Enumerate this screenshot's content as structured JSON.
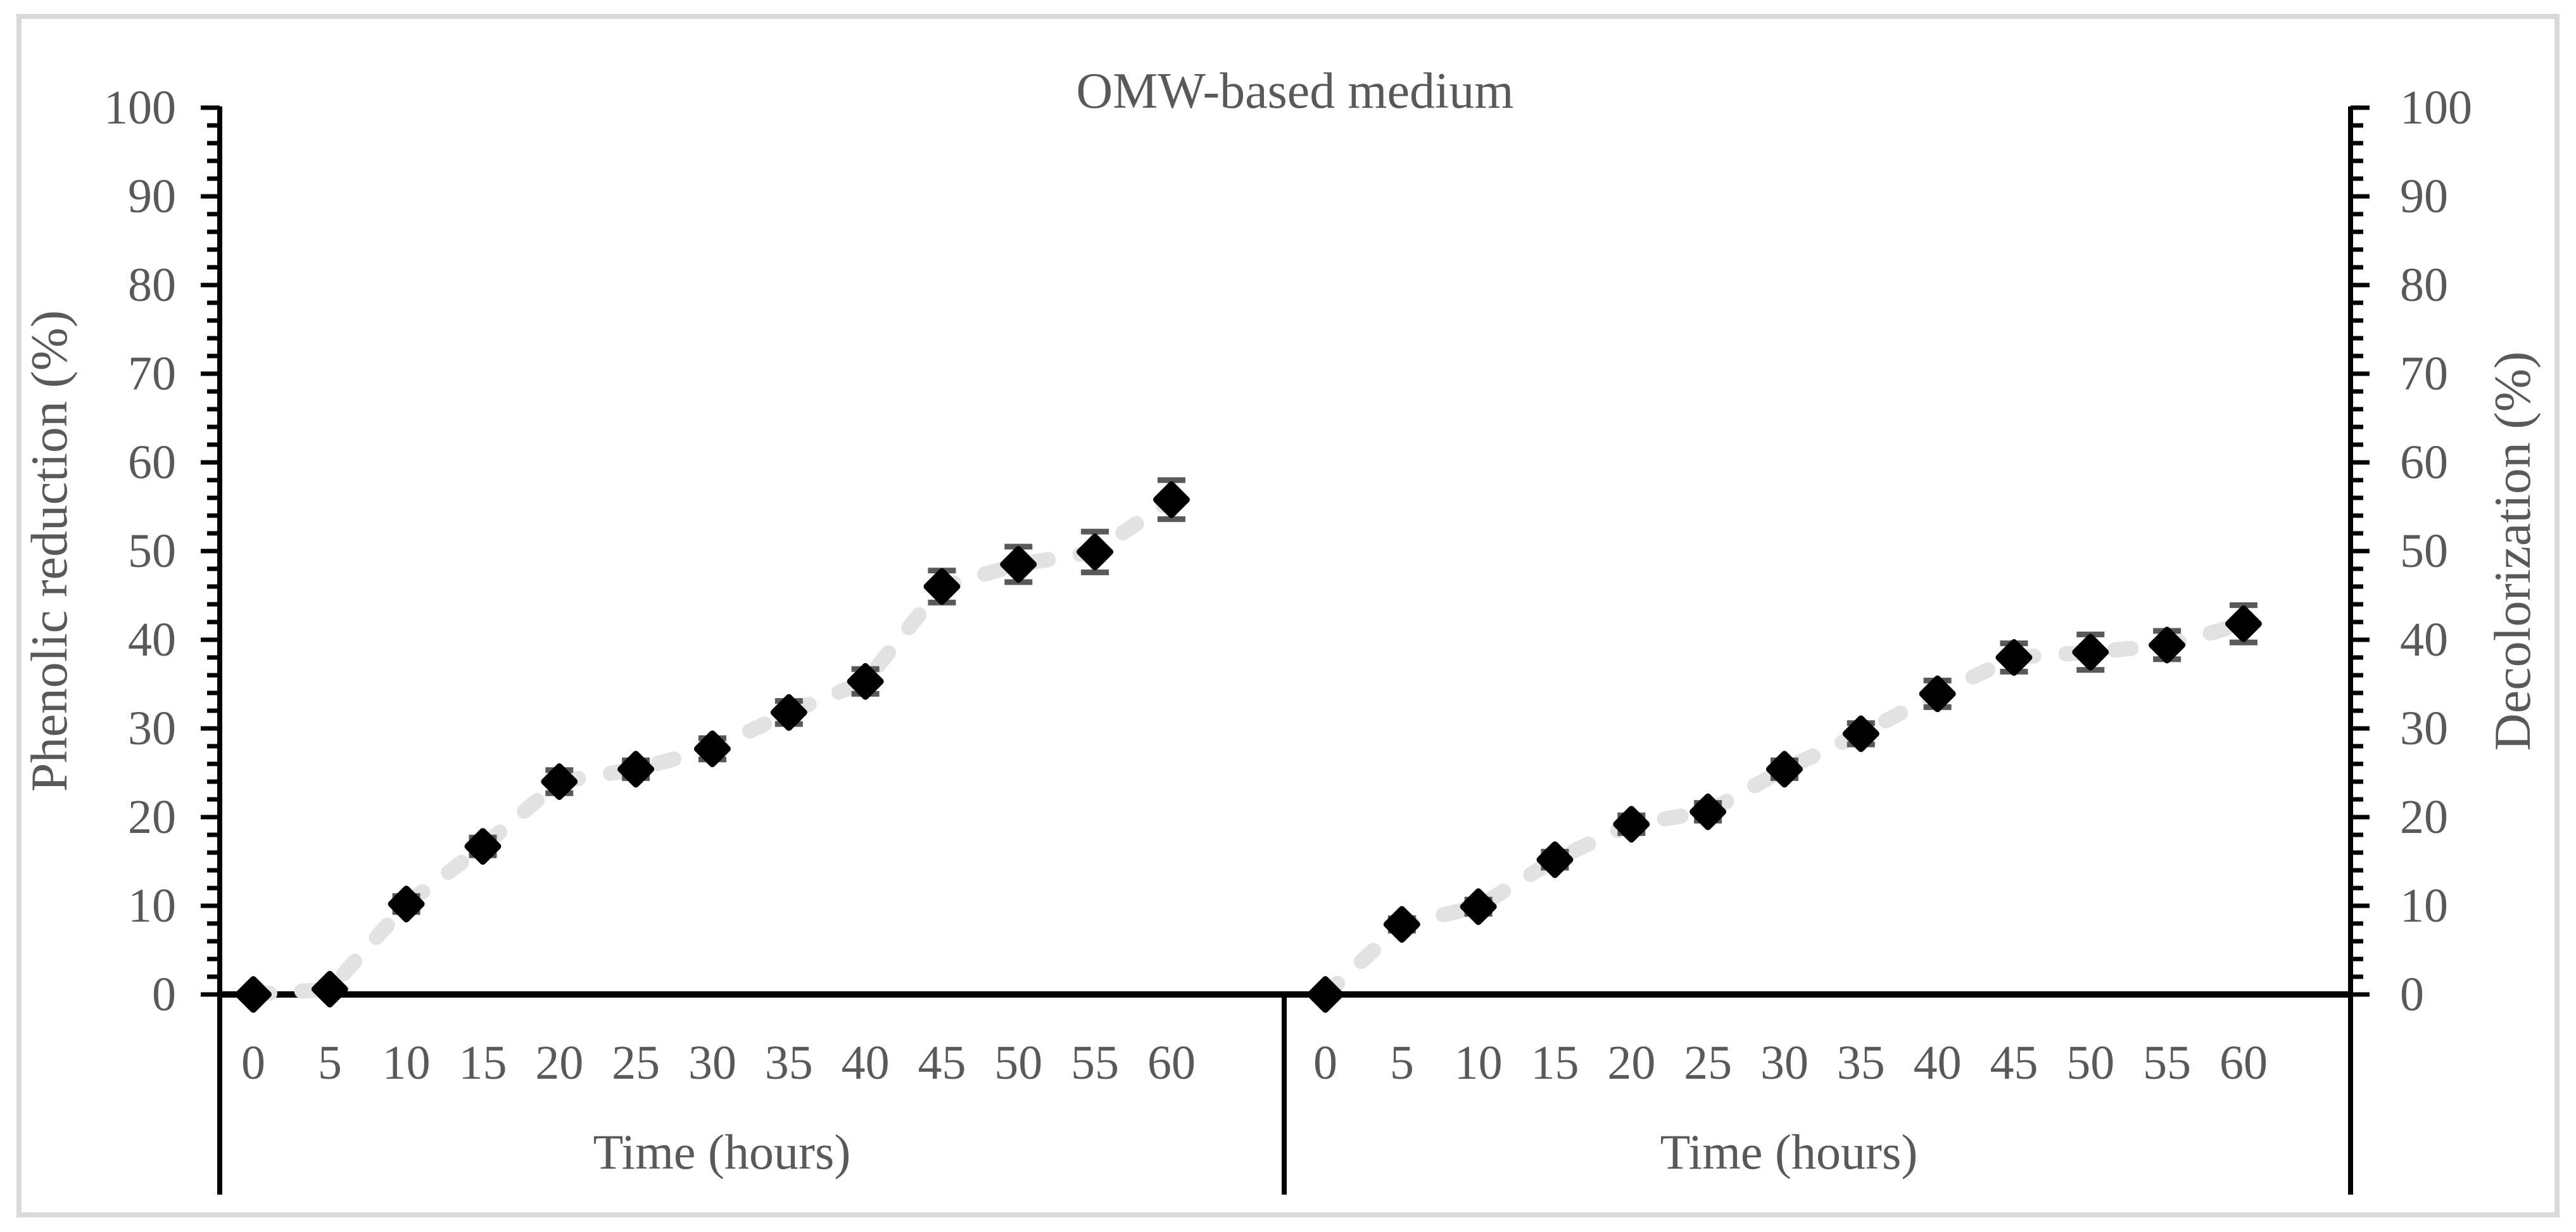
{
  "figure": {
    "title": "OMW-based medium",
    "background": "#ffffff",
    "border_color": "#d9d9d9"
  },
  "style": {
    "axis_color": "#000000",
    "text_color": "#595959",
    "marker_color": "#000000",
    "dash_line_color": "#e2e2e2",
    "error_bar_color": "#595959"
  },
  "chart_data": [
    {
      "type": "scatter",
      "panel": "left",
      "title": "OMW-based medium",
      "xlabel": "Time (hours)",
      "ylabel": "Phenolic reduction (%)",
      "ylabel_side": "left",
      "marker": "diamond",
      "line_style": "dashed",
      "grid": false,
      "legend": false,
      "xlim": [
        0,
        60
      ],
      "ylim": [
        0,
        100
      ],
      "x_tick_step": 5,
      "y_tick_step": 10,
      "y_minor_tick_step": 2,
      "x_tick_labels": [
        "0",
        "5",
        "10",
        "15",
        "20",
        "25",
        "30",
        "35",
        "40",
        "45",
        "50",
        "55",
        "60"
      ],
      "y_tick_labels": [
        "0",
        "10",
        "20",
        "30",
        "40",
        "50",
        "60",
        "70",
        "80",
        "90",
        "100"
      ],
      "x": [
        0,
        5,
        10,
        15,
        20,
        25,
        30,
        35,
        40,
        45,
        50,
        55,
        60
      ],
      "y": [
        0,
        0.6,
        10.2,
        16.7,
        24.0,
        25.4,
        27.7,
        31.8,
        35.3,
        46.0,
        48.5,
        49.9,
        55.8
      ],
      "yerr": [
        0,
        0,
        0.9,
        1.0,
        1.3,
        1.0,
        1.2,
        1.3,
        1.4,
        1.8,
        2.0,
        2.3,
        2.2
      ]
    },
    {
      "type": "scatter",
      "panel": "right",
      "title": "OMW-based medium",
      "xlabel": "Time (hours)",
      "ylabel": "Decolorization (%)",
      "ylabel_side": "right",
      "marker": "diamond",
      "line_style": "dashed",
      "grid": false,
      "legend": false,
      "xlim": [
        0,
        60
      ],
      "ylim": [
        0,
        100
      ],
      "x_tick_step": 5,
      "y_tick_step": 10,
      "y_minor_tick_step": 2,
      "x_tick_labels": [
        "0",
        "5",
        "10",
        "15",
        "20",
        "25",
        "30",
        "35",
        "40",
        "45",
        "50",
        "55",
        "60"
      ],
      "y_tick_labels": [
        "0",
        "10",
        "20",
        "30",
        "40",
        "50",
        "60",
        "70",
        "80",
        "90",
        "100"
      ],
      "x": [
        0,
        5,
        10,
        15,
        20,
        25,
        30,
        35,
        40,
        45,
        50,
        55,
        60
      ],
      "y": [
        0,
        7.9,
        9.9,
        15.2,
        19.2,
        20.6,
        25.4,
        29.4,
        33.9,
        38.0,
        38.6,
        39.4,
        41.8
      ],
      "yerr": [
        0,
        0.7,
        0.8,
        0.9,
        1.0,
        1.0,
        1.0,
        1.2,
        1.5,
        1.6,
        2.0,
        1.6,
        2.1
      ]
    }
  ]
}
